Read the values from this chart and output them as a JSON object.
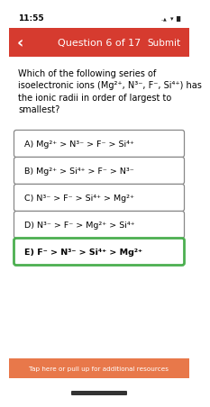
{
  "status_bar_time": "11:55",
  "header_bg": "#d63b2f",
  "header_text": "Question 6 of 17",
  "header_text_color": "#ffffff",
  "submit_text": "Submit",
  "back_arrow": "‹",
  "question_text_lines": [
    "Which of the following series of",
    "isoelectronic ions (Mg²⁺, N³⁻, F⁻, Si⁴⁺) has",
    "the ionic radii in order of largest to",
    "smallest?"
  ],
  "options": [
    "A) Mg²⁺ > N³⁻ > F⁻ > Si⁴⁺",
    "B) Mg²⁺ > Si⁴⁺ > F⁻ > N³⁻",
    "C) N³⁻ > F⁻ > Si⁴⁺ > Mg²⁺",
    "D) N³⁻ > F⁻ > Mg²⁺ > Si⁴⁺",
    "E) F⁻ > N³⁻ > Si⁴⁺ > Mg²⁺"
  ],
  "correct_option_index": 4,
  "option_bg": "#ffffff",
  "option_border_normal": "#888888",
  "option_border_correct": "#4caf50",
  "option_text_color": "#000000",
  "bg_color": "#ffffff",
  "footer_text": "Tap here or pull up for additional resources",
  "footer_bg": "#e8784a",
  "status_bar_bg": "#ffffff",
  "bottom_bar_color": "#333333"
}
